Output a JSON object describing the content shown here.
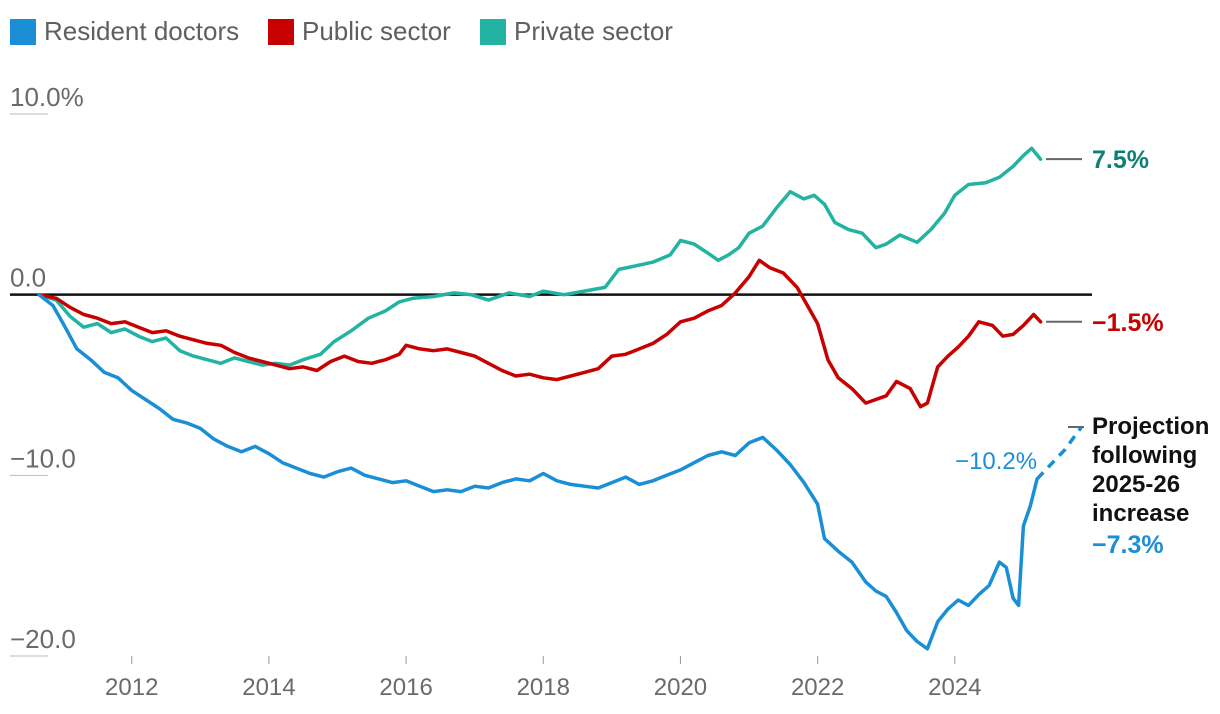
{
  "chart_data": {
    "type": "line",
    "title": "",
    "xlabel": "",
    "ylabel": "",
    "xlim": [
      2010.4,
      2026.0
    ],
    "ylim": [
      -20.0,
      10.0
    ],
    "y_ticks": [
      {
        "value": 10,
        "label": "10.0%"
      },
      {
        "value": 0,
        "label": "0.0"
      },
      {
        "value": -10,
        "label": "−10.0"
      },
      {
        "value": -20,
        "label": "−20.0"
      }
    ],
    "x_ticks": [
      {
        "value": 2012,
        "label": "2012"
      },
      {
        "value": 2014,
        "label": "2014"
      },
      {
        "value": 2016,
        "label": "2016"
      },
      {
        "value": 2018,
        "label": "2018"
      },
      {
        "value": 2020,
        "label": "2020"
      },
      {
        "value": 2022,
        "label": "2022"
      },
      {
        "value": 2024,
        "label": "2024"
      }
    ],
    "legend": [
      {
        "name": "Resident doctors",
        "color": "#1a8fd6"
      },
      {
        "name": "Public sector",
        "color": "#c70000"
      },
      {
        "name": "Private sector",
        "color": "#22b3a2"
      }
    ],
    "series": [
      {
        "name": "Private sector",
        "color": "#22b3a2",
        "end_label": "7.5%",
        "end_label_color": "#0d7f74",
        "points": [
          [
            2010.65,
            0.0
          ],
          [
            2010.9,
            -0.3
          ],
          [
            2011.1,
            -1.2
          ],
          [
            2011.3,
            -1.8
          ],
          [
            2011.5,
            -1.6
          ],
          [
            2011.7,
            -2.1
          ],
          [
            2011.9,
            -1.9
          ],
          [
            2012.1,
            -2.3
          ],
          [
            2012.3,
            -2.6
          ],
          [
            2012.5,
            -2.4
          ],
          [
            2012.7,
            -3.1
          ],
          [
            2012.9,
            -3.4
          ],
          [
            2013.1,
            -3.6
          ],
          [
            2013.3,
            -3.8
          ],
          [
            2013.5,
            -3.5
          ],
          [
            2013.7,
            -3.7
          ],
          [
            2013.9,
            -3.9
          ],
          [
            2014.1,
            -3.8
          ],
          [
            2014.3,
            -3.9
          ],
          [
            2014.5,
            -3.6
          ],
          [
            2014.75,
            -3.3
          ],
          [
            2014.95,
            -2.6
          ],
          [
            2015.2,
            -2.0
          ],
          [
            2015.45,
            -1.3
          ],
          [
            2015.7,
            -0.9
          ],
          [
            2015.9,
            -0.4
          ],
          [
            2016.1,
            -0.2
          ],
          [
            2016.4,
            -0.1
          ],
          [
            2016.7,
            0.1
          ],
          [
            2016.95,
            0.0
          ],
          [
            2017.2,
            -0.3
          ],
          [
            2017.5,
            0.1
          ],
          [
            2017.8,
            -0.1
          ],
          [
            2018.0,
            0.2
          ],
          [
            2018.3,
            0.0
          ],
          [
            2018.6,
            0.2
          ],
          [
            2018.9,
            0.4
          ],
          [
            2019.1,
            1.4
          ],
          [
            2019.35,
            1.6
          ],
          [
            2019.6,
            1.8
          ],
          [
            2019.85,
            2.2
          ],
          [
            2020.0,
            3.0
          ],
          [
            2020.2,
            2.8
          ],
          [
            2020.4,
            2.3
          ],
          [
            2020.55,
            1.9
          ],
          [
            2020.7,
            2.2
          ],
          [
            2020.85,
            2.6
          ],
          [
            2021.0,
            3.4
          ],
          [
            2021.2,
            3.8
          ],
          [
            2021.4,
            4.8
          ],
          [
            2021.6,
            5.7
          ],
          [
            2021.8,
            5.3
          ],
          [
            2021.95,
            5.5
          ],
          [
            2022.1,
            5.0
          ],
          [
            2022.25,
            4.0
          ],
          [
            2022.45,
            3.6
          ],
          [
            2022.65,
            3.4
          ],
          [
            2022.85,
            2.6
          ],
          [
            2023.0,
            2.8
          ],
          [
            2023.2,
            3.3
          ],
          [
            2023.45,
            2.9
          ],
          [
            2023.65,
            3.6
          ],
          [
            2023.85,
            4.5
          ],
          [
            2024.0,
            5.5
          ],
          [
            2024.2,
            6.1
          ],
          [
            2024.45,
            6.2
          ],
          [
            2024.65,
            6.5
          ],
          [
            2024.85,
            7.1
          ],
          [
            2025.0,
            7.7
          ],
          [
            2025.12,
            8.1
          ],
          [
            2025.25,
            7.5
          ]
        ]
      },
      {
        "name": "Public sector",
        "color": "#c70000",
        "end_label": "−1.5%",
        "end_label_color": "#c70000",
        "points": [
          [
            2010.65,
            0.0
          ],
          [
            2010.9,
            -0.2
          ],
          [
            2011.1,
            -0.7
          ],
          [
            2011.3,
            -1.1
          ],
          [
            2011.5,
            -1.3
          ],
          [
            2011.7,
            -1.6
          ],
          [
            2011.9,
            -1.5
          ],
          [
            2012.1,
            -1.8
          ],
          [
            2012.3,
            -2.1
          ],
          [
            2012.5,
            -2.0
          ],
          [
            2012.7,
            -2.3
          ],
          [
            2012.9,
            -2.5
          ],
          [
            2013.1,
            -2.7
          ],
          [
            2013.3,
            -2.8
          ],
          [
            2013.5,
            -3.2
          ],
          [
            2013.7,
            -3.5
          ],
          [
            2013.9,
            -3.7
          ],
          [
            2014.1,
            -3.9
          ],
          [
            2014.3,
            -4.1
          ],
          [
            2014.5,
            -4.0
          ],
          [
            2014.7,
            -4.2
          ],
          [
            2014.9,
            -3.7
          ],
          [
            2015.1,
            -3.4
          ],
          [
            2015.3,
            -3.7
          ],
          [
            2015.5,
            -3.8
          ],
          [
            2015.7,
            -3.6
          ],
          [
            2015.9,
            -3.3
          ],
          [
            2016.0,
            -2.8
          ],
          [
            2016.2,
            -3.0
          ],
          [
            2016.4,
            -3.1
          ],
          [
            2016.6,
            -3.0
          ],
          [
            2016.8,
            -3.2
          ],
          [
            2017.0,
            -3.4
          ],
          [
            2017.2,
            -3.8
          ],
          [
            2017.4,
            -4.2
          ],
          [
            2017.6,
            -4.5
          ],
          [
            2017.8,
            -4.4
          ],
          [
            2018.0,
            -4.6
          ],
          [
            2018.2,
            -4.7
          ],
          [
            2018.4,
            -4.5
          ],
          [
            2018.6,
            -4.3
          ],
          [
            2018.8,
            -4.1
          ],
          [
            2019.0,
            -3.4
          ],
          [
            2019.2,
            -3.3
          ],
          [
            2019.4,
            -3.0
          ],
          [
            2019.6,
            -2.7
          ],
          [
            2019.8,
            -2.2
          ],
          [
            2020.0,
            -1.5
          ],
          [
            2020.2,
            -1.3
          ],
          [
            2020.4,
            -0.9
          ],
          [
            2020.6,
            -0.6
          ],
          [
            2020.8,
            0.1
          ],
          [
            2021.0,
            1.0
          ],
          [
            2021.15,
            1.9
          ],
          [
            2021.3,
            1.5
          ],
          [
            2021.5,
            1.2
          ],
          [
            2021.7,
            0.4
          ],
          [
            2021.85,
            -0.6
          ],
          [
            2022.0,
            -1.6
          ],
          [
            2022.15,
            -3.6
          ],
          [
            2022.3,
            -4.6
          ],
          [
            2022.5,
            -5.2
          ],
          [
            2022.7,
            -6.0
          ],
          [
            2022.85,
            -5.8
          ],
          [
            2023.0,
            -5.6
          ],
          [
            2023.15,
            -4.8
          ],
          [
            2023.35,
            -5.2
          ],
          [
            2023.5,
            -6.2
          ],
          [
            2023.6,
            -6.0
          ],
          [
            2023.75,
            -4.0
          ],
          [
            2023.9,
            -3.4
          ],
          [
            2024.05,
            -2.9
          ],
          [
            2024.2,
            -2.3
          ],
          [
            2024.35,
            -1.5
          ],
          [
            2024.55,
            -1.7
          ],
          [
            2024.7,
            -2.3
          ],
          [
            2024.85,
            -2.2
          ],
          [
            2025.0,
            -1.7
          ],
          [
            2025.15,
            -1.1
          ],
          [
            2025.25,
            -1.5
          ]
        ]
      },
      {
        "name": "Resident doctors",
        "color": "#1a8fd6",
        "end_label": "−10.2%",
        "end_label_color": "#1a8fd6",
        "projection_label": "−7.3%",
        "projection_points": [
          [
            2025.2,
            -10.2
          ],
          [
            2025.6,
            -8.6
          ],
          [
            2025.85,
            -7.3
          ]
        ],
        "points": [
          [
            2010.65,
            0.0
          ],
          [
            2010.85,
            -0.6
          ],
          [
            2011.0,
            -1.6
          ],
          [
            2011.2,
            -3.0
          ],
          [
            2011.4,
            -3.6
          ],
          [
            2011.6,
            -4.3
          ],
          [
            2011.8,
            -4.6
          ],
          [
            2012.0,
            -5.3
          ],
          [
            2012.2,
            -5.8
          ],
          [
            2012.4,
            -6.3
          ],
          [
            2012.6,
            -6.9
          ],
          [
            2012.8,
            -7.1
          ],
          [
            2013.0,
            -7.4
          ],
          [
            2013.2,
            -8.0
          ],
          [
            2013.4,
            -8.4
          ],
          [
            2013.6,
            -8.7
          ],
          [
            2013.8,
            -8.4
          ],
          [
            2014.0,
            -8.8
          ],
          [
            2014.2,
            -9.3
          ],
          [
            2014.4,
            -9.6
          ],
          [
            2014.6,
            -9.9
          ],
          [
            2014.8,
            -10.1
          ],
          [
            2015.0,
            -9.8
          ],
          [
            2015.2,
            -9.6
          ],
          [
            2015.4,
            -10.0
          ],
          [
            2015.6,
            -10.2
          ],
          [
            2015.8,
            -10.4
          ],
          [
            2016.0,
            -10.3
          ],
          [
            2016.2,
            -10.6
          ],
          [
            2016.4,
            -10.9
          ],
          [
            2016.6,
            -10.8
          ],
          [
            2016.8,
            -10.9
          ],
          [
            2017.0,
            -10.6
          ],
          [
            2017.2,
            -10.7
          ],
          [
            2017.4,
            -10.4
          ],
          [
            2017.6,
            -10.2
          ],
          [
            2017.8,
            -10.3
          ],
          [
            2018.0,
            -9.9
          ],
          [
            2018.2,
            -10.3
          ],
          [
            2018.4,
            -10.5
          ],
          [
            2018.6,
            -10.6
          ],
          [
            2018.8,
            -10.7
          ],
          [
            2019.0,
            -10.4
          ],
          [
            2019.2,
            -10.1
          ],
          [
            2019.4,
            -10.5
          ],
          [
            2019.6,
            -10.3
          ],
          [
            2019.8,
            -10.0
          ],
          [
            2020.0,
            -9.7
          ],
          [
            2020.2,
            -9.3
          ],
          [
            2020.4,
            -8.9
          ],
          [
            2020.6,
            -8.7
          ],
          [
            2020.8,
            -8.9
          ],
          [
            2021.0,
            -8.2
          ],
          [
            2021.2,
            -7.9
          ],
          [
            2021.4,
            -8.6
          ],
          [
            2021.6,
            -9.4
          ],
          [
            2021.8,
            -10.4
          ],
          [
            2022.0,
            -11.6
          ],
          [
            2022.1,
            -13.5
          ],
          [
            2022.3,
            -14.2
          ],
          [
            2022.5,
            -14.8
          ],
          [
            2022.7,
            -15.9
          ],
          [
            2022.85,
            -16.4
          ],
          [
            2023.0,
            -16.7
          ],
          [
            2023.15,
            -17.6
          ],
          [
            2023.3,
            -18.6
          ],
          [
            2023.45,
            -19.2
          ],
          [
            2023.6,
            -19.6
          ],
          [
            2023.75,
            -18.1
          ],
          [
            2023.9,
            -17.4
          ],
          [
            2024.05,
            -16.9
          ],
          [
            2024.2,
            -17.2
          ],
          [
            2024.35,
            -16.6
          ],
          [
            2024.5,
            -16.1
          ],
          [
            2024.65,
            -14.8
          ],
          [
            2024.75,
            -15.1
          ],
          [
            2024.85,
            -16.8
          ],
          [
            2024.93,
            -17.2
          ],
          [
            2025.0,
            -12.8
          ],
          [
            2025.1,
            -11.7
          ],
          [
            2025.2,
            -10.2
          ]
        ]
      }
    ],
    "annotations": {
      "projection_note": [
        "Projection",
        "following",
        "2025-26",
        "increase"
      ]
    }
  }
}
